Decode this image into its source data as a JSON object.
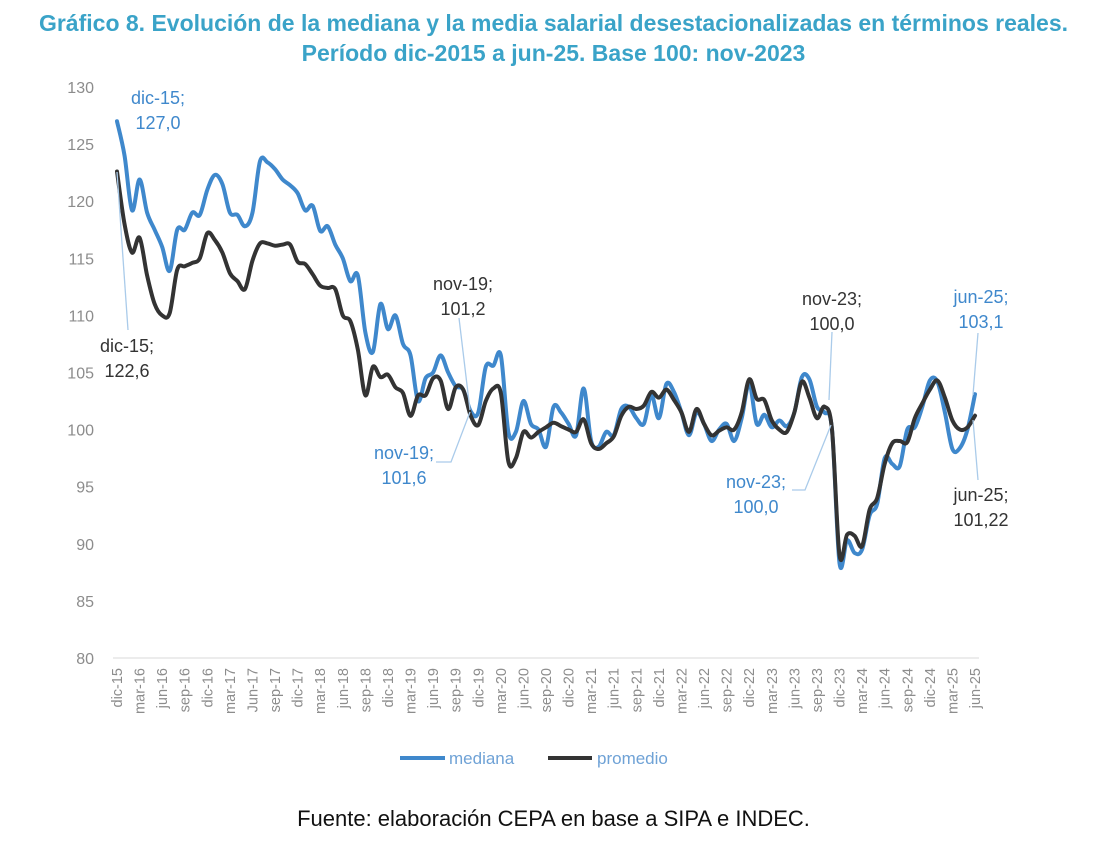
{
  "title": "Gráfico 8. Evolución de la mediana y la media salarial desestacionalizadas en términos reales. Período dic-2015 a jun-25. Base 100: nov-2023",
  "source": "Fuente: elaboración CEPA en base a SIPA e INDEC.",
  "colors": {
    "title": "#3aa3c8",
    "mediana": "#3f88cc",
    "promedio": "#333333",
    "leader": "#aacbea",
    "axis_text": "#8c8c8c"
  },
  "chart_data": {
    "type": "line",
    "frequency": "monthly",
    "start": "dic-15",
    "end": "jun-25",
    "ylim": [
      80,
      130
    ],
    "yticks": [
      80,
      85,
      90,
      95,
      100,
      105,
      110,
      115,
      120,
      125,
      130
    ],
    "grid": false,
    "legend_position": "bottom",
    "x_tick_labels": [
      "dic-15",
      "mar-16",
      "jun-16",
      "sep-16",
      "dic-16",
      "mar-17",
      "Jun-17",
      "sep-17",
      "dic-17",
      "mar-18",
      "jun-18",
      "sep-18",
      "dic-18",
      "mar-19",
      "jun-19",
      "sep-19",
      "dic-19",
      "mar-20",
      "jun-20",
      "sep-20",
      "dic-20",
      "mar-21",
      "jun-21",
      "sep-21",
      "dic-21",
      "mar-22",
      "jun-22",
      "sep-22",
      "dic-22",
      "mar-23",
      "jun-23",
      "sep-23",
      "dic-23",
      "mar-24",
      "jun-24",
      "sep-24",
      "dic-24",
      "mar-25",
      "jun-25"
    ],
    "series": [
      {
        "name": "mediana",
        "values": [
          127.0,
          124,
          119.2,
          121.9,
          119,
          117.5,
          116,
          113.9,
          117.5,
          117.5,
          119,
          118.8,
          121,
          122.3,
          121.5,
          119,
          118.8,
          117.8,
          119,
          123.5,
          123.4,
          122.8,
          121.9,
          121.4,
          120.7,
          119.2,
          119.6,
          117.4,
          117.8,
          116.2,
          115,
          113,
          113.5,
          108.5,
          106.8,
          111,
          108.8,
          110,
          107.5,
          106.5,
          102.5,
          104.5,
          105,
          106.5,
          105,
          103.8,
          103.5,
          101.6,
          101.5,
          105.5,
          105.6,
          106.5,
          99.8,
          99.8,
          102.5,
          100.5,
          100,
          98.5,
          102,
          101.5,
          100.5,
          99.5,
          103.6,
          99,
          98.5,
          99.8,
          99.5,
          101.8,
          102,
          101,
          100.5,
          103,
          101,
          104,
          103.3,
          101.5,
          99.5,
          101.5,
          100.5,
          99,
          100,
          100.5,
          99,
          101,
          104,
          100.5,
          101.3,
          100.2,
          100.8,
          100.3,
          101.5,
          104.6,
          104.4,
          102,
          101.5,
          100.0,
          88.3,
          90.3,
          89.2,
          89.5,
          92.5,
          93.5,
          97.5,
          97,
          96.8,
          100,
          100.2,
          102,
          104.3,
          104.2,
          101.5,
          98.3,
          98.4,
          100,
          103.1
        ]
      },
      {
        "name": "promedio",
        "values": [
          122.6,
          118,
          115.5,
          116.8,
          113.5,
          111,
          110,
          110.2,
          114,
          114.3,
          114.6,
          115,
          117.2,
          116.6,
          115.5,
          113.7,
          113,
          112.3,
          114.8,
          116.3,
          116.3,
          116.1,
          116.2,
          116.2,
          114.7,
          114.5,
          113.6,
          112.6,
          112.4,
          112.3,
          110,
          109.5,
          107,
          103,
          105.5,
          104.6,
          104.8,
          103.7,
          103.2,
          101.2,
          103,
          103,
          104.5,
          104.3,
          101.8,
          103.7,
          103.5,
          101.2,
          100.4,
          102.5,
          103.6,
          103.2,
          97.2,
          97.5,
          99.8,
          99.3,
          99.8,
          100.2,
          100.6,
          100.3,
          100,
          99.8,
          100.9,
          98.8,
          98.3,
          98.8,
          99.4,
          101.2,
          102,
          101.8,
          102.1,
          103.3,
          102.8,
          103.5,
          102.6,
          101.5,
          99.8,
          101.8,
          100.5,
          99.5,
          99.9,
          100.2,
          100,
          101.5,
          104.4,
          102.7,
          102.6,
          100.8,
          100,
          99.8,
          101.5,
          104.2,
          102.8,
          101,
          102,
          100.0,
          89,
          90.8,
          90.7,
          89.8,
          93,
          94,
          97,
          98.8,
          99,
          98.9,
          101,
          102.3,
          103.5,
          104.3,
          102.8,
          100.8,
          100,
          100.2,
          101.22
        ]
      }
    ],
    "annotations": [
      {
        "series": "mediana",
        "label": "dic-15;",
        "value": "127,0"
      },
      {
        "series": "promedio",
        "label": "dic-15;",
        "value": "122,6"
      },
      {
        "series": "promedio",
        "label": "nov-19;",
        "value": "101,2"
      },
      {
        "series": "mediana",
        "label": "nov-19;",
        "value": "101,6"
      },
      {
        "series": "promedio",
        "label": "nov-23;",
        "value": "100,0"
      },
      {
        "series": "mediana",
        "label": "nov-23;",
        "value": "100,0"
      },
      {
        "series": "mediana",
        "label": "jun-25;",
        "value": "103,1"
      },
      {
        "series": "promedio",
        "label": "jun-25;",
        "value": "101,22"
      }
    ]
  }
}
